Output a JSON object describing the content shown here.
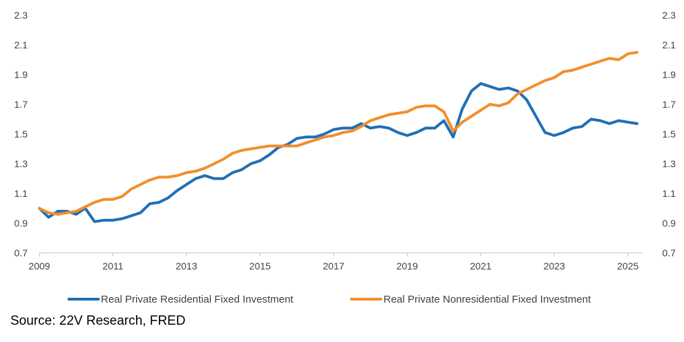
{
  "chart_data": {
    "type": "line",
    "title": "",
    "xlabel": "",
    "ylabel": "",
    "ylim": [
      0.7,
      2.3
    ],
    "xlim": [
      2009.0,
      2025.4
    ],
    "y_ticks": [
      "0.7",
      "0.9",
      "1.1",
      "1.3",
      "1.5",
      "1.7",
      "1.9",
      "2.1",
      "2.3"
    ],
    "x_ticks": [
      "2009",
      "2011",
      "2013",
      "2015",
      "2017",
      "2019",
      "2021",
      "2023",
      "2025"
    ],
    "grid": false,
    "legend_position": "bottom",
    "series": [
      {
        "name": "Real Private Residential Fixed Investment",
        "color": "#1F6FB5",
        "x": [
          2009.0,
          2009.25,
          2009.5,
          2009.75,
          2010.0,
          2010.25,
          2010.5,
          2010.75,
          2011.0,
          2011.25,
          2011.5,
          2011.75,
          2012.0,
          2012.25,
          2012.5,
          2012.75,
          2013.0,
          2013.25,
          2013.5,
          2013.75,
          2014.0,
          2014.25,
          2014.5,
          2014.75,
          2015.0,
          2015.25,
          2015.5,
          2015.75,
          2016.0,
          2016.25,
          2016.5,
          2016.75,
          2017.0,
          2017.25,
          2017.5,
          2017.75,
          2018.0,
          2018.25,
          2018.5,
          2018.75,
          2019.0,
          2019.25,
          2019.5,
          2019.75,
          2020.0,
          2020.25,
          2020.5,
          2020.75,
          2021.0,
          2021.25,
          2021.5,
          2021.75,
          2022.0,
          2022.25,
          2022.5,
          2022.75,
          2023.0,
          2023.25,
          2023.5,
          2023.75,
          2024.0,
          2024.25,
          2024.5,
          2024.75,
          2025.0,
          2025.25
        ],
        "values": [
          1.0,
          0.94,
          0.98,
          0.98,
          0.96,
          1.0,
          0.91,
          0.92,
          0.92,
          0.93,
          0.95,
          0.97,
          1.03,
          1.04,
          1.07,
          1.12,
          1.16,
          1.2,
          1.22,
          1.2,
          1.2,
          1.24,
          1.26,
          1.3,
          1.32,
          1.36,
          1.41,
          1.43,
          1.47,
          1.48,
          1.48,
          1.5,
          1.53,
          1.54,
          1.54,
          1.57,
          1.54,
          1.55,
          1.54,
          1.51,
          1.49,
          1.51,
          1.54,
          1.54,
          1.59,
          1.48,
          1.67,
          1.79,
          1.84,
          1.82,
          1.8,
          1.81,
          1.79,
          1.73,
          1.62,
          1.51,
          1.49,
          1.51,
          1.54,
          1.55,
          1.6,
          1.59,
          1.57,
          1.59,
          1.58,
          1.57
        ]
      },
      {
        "name": "Real Private Nonresidential Fixed Investment",
        "color": "#F28E2B",
        "x": [
          2009.0,
          2009.25,
          2009.5,
          2009.75,
          2010.0,
          2010.25,
          2010.5,
          2010.75,
          2011.0,
          2011.25,
          2011.5,
          2011.75,
          2012.0,
          2012.25,
          2012.5,
          2012.75,
          2013.0,
          2013.25,
          2013.5,
          2013.75,
          2014.0,
          2014.25,
          2014.5,
          2014.75,
          2015.0,
          2015.25,
          2015.5,
          2015.75,
          2016.0,
          2016.25,
          2016.5,
          2016.75,
          2017.0,
          2017.25,
          2017.5,
          2017.75,
          2018.0,
          2018.25,
          2018.5,
          2018.75,
          2019.0,
          2019.25,
          2019.5,
          2019.75,
          2020.0,
          2020.25,
          2020.5,
          2020.75,
          2021.0,
          2021.25,
          2021.5,
          2021.75,
          2022.0,
          2022.25,
          2022.5,
          2022.75,
          2023.0,
          2023.25,
          2023.5,
          2023.75,
          2024.0,
          2024.25,
          2024.5,
          2024.75,
          2025.0,
          2025.25
        ],
        "values": [
          1.0,
          0.97,
          0.96,
          0.97,
          0.98,
          1.01,
          1.04,
          1.06,
          1.06,
          1.08,
          1.13,
          1.16,
          1.19,
          1.21,
          1.21,
          1.22,
          1.24,
          1.25,
          1.27,
          1.3,
          1.33,
          1.37,
          1.39,
          1.4,
          1.41,
          1.42,
          1.42,
          1.42,
          1.42,
          1.44,
          1.46,
          1.48,
          1.49,
          1.51,
          1.52,
          1.55,
          1.59,
          1.61,
          1.63,
          1.64,
          1.65,
          1.68,
          1.69,
          1.69,
          1.65,
          1.52,
          1.58,
          1.62,
          1.66,
          1.7,
          1.69,
          1.71,
          1.77,
          1.8,
          1.83,
          1.86,
          1.88,
          1.92,
          1.93,
          1.95,
          1.97,
          1.99,
          2.01,
          2.0,
          2.04,
          2.05
        ]
      }
    ]
  },
  "source": "Source: 22V Research, FRED"
}
